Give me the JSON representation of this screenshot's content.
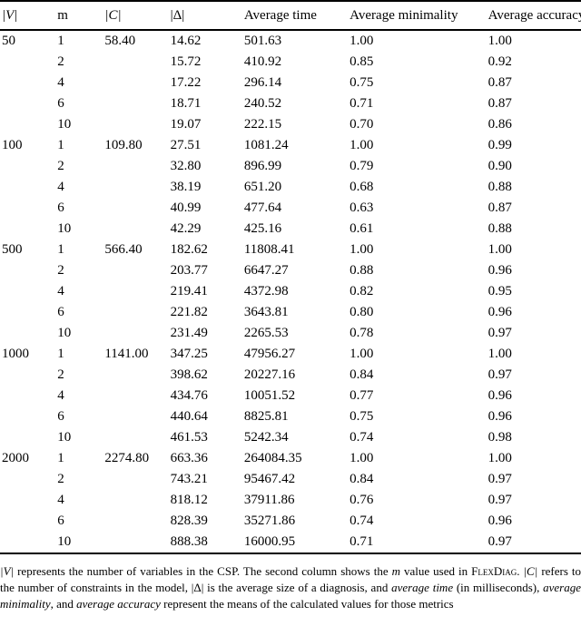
{
  "colors": {
    "text": "#000000",
    "background": "#ffffff",
    "rule": "#000000"
  },
  "table": {
    "headers": [
      {
        "label": "|V|",
        "style": "math-italic"
      },
      {
        "label": "m",
        "style": "roman"
      },
      {
        "label": "|C|",
        "style": "math-italic"
      },
      {
        "label": "|Δ|",
        "style": "roman"
      },
      {
        "label": "Average time",
        "style": "roman"
      },
      {
        "label": "Average minimality",
        "style": "roman"
      },
      {
        "label": "Average accuracy",
        "style": "roman"
      }
    ],
    "column_keys": [
      "v",
      "m",
      "c",
      "delta",
      "avg_time",
      "avg_minimality",
      "avg_accuracy"
    ],
    "rows": [
      {
        "v": "50",
        "m": "1",
        "c": "58.40",
        "delta": "14.62",
        "avg_time": "501.63",
        "avg_minimality": "1.00",
        "avg_accuracy": "1.00"
      },
      {
        "v": "",
        "m": "2",
        "c": "",
        "delta": "15.72",
        "avg_time": "410.92",
        "avg_minimality": "0.85",
        "avg_accuracy": "0.92"
      },
      {
        "v": "",
        "m": "4",
        "c": "",
        "delta": "17.22",
        "avg_time": "296.14",
        "avg_minimality": "0.75",
        "avg_accuracy": "0.87"
      },
      {
        "v": "",
        "m": "6",
        "c": "",
        "delta": "18.71",
        "avg_time": "240.52",
        "avg_minimality": "0.71",
        "avg_accuracy": "0.87"
      },
      {
        "v": "",
        "m": "10",
        "c": "",
        "delta": "19.07",
        "avg_time": "222.15",
        "avg_minimality": "0.70",
        "avg_accuracy": "0.86"
      },
      {
        "v": "100",
        "m": "1",
        "c": "109.80",
        "delta": "27.51",
        "avg_time": "1081.24",
        "avg_minimality": "1.00",
        "avg_accuracy": "0.99"
      },
      {
        "v": "",
        "m": "2",
        "c": "",
        "delta": "32.80",
        "avg_time": "896.99",
        "avg_minimality": "0.79",
        "avg_accuracy": "0.90"
      },
      {
        "v": "",
        "m": "4",
        "c": "",
        "delta": "38.19",
        "avg_time": "651.20",
        "avg_minimality": "0.68",
        "avg_accuracy": "0.88"
      },
      {
        "v": "",
        "m": "6",
        "c": "",
        "delta": "40.99",
        "avg_time": "477.64",
        "avg_minimality": "0.63",
        "avg_accuracy": "0.87"
      },
      {
        "v": "",
        "m": "10",
        "c": "",
        "delta": "42.29",
        "avg_time": "425.16",
        "avg_minimality": "0.61",
        "avg_accuracy": "0.88"
      },
      {
        "v": "500",
        "m": "1",
        "c": "566.40",
        "delta": "182.62",
        "avg_time": "11808.41",
        "avg_minimality": "1.00",
        "avg_accuracy": "1.00"
      },
      {
        "v": "",
        "m": "2",
        "c": "",
        "delta": "203.77",
        "avg_time": "6647.27",
        "avg_minimality": "0.88",
        "avg_accuracy": "0.96"
      },
      {
        "v": "",
        "m": "4",
        "c": "",
        "delta": "219.41",
        "avg_time": "4372.98",
        "avg_minimality": "0.82",
        "avg_accuracy": "0.95"
      },
      {
        "v": "",
        "m": "6",
        "c": "",
        "delta": "221.82",
        "avg_time": "3643.81",
        "avg_minimality": "0.80",
        "avg_accuracy": "0.96"
      },
      {
        "v": "",
        "m": "10",
        "c": "",
        "delta": "231.49",
        "avg_time": "2265.53",
        "avg_minimality": "0.78",
        "avg_accuracy": "0.97"
      },
      {
        "v": "1000",
        "m": "1",
        "c": "1141.00",
        "delta": "347.25",
        "avg_time": "47956.27",
        "avg_minimality": "1.00",
        "avg_accuracy": "1.00"
      },
      {
        "v": "",
        "m": "2",
        "c": "",
        "delta": "398.62",
        "avg_time": "20227.16",
        "avg_minimality": "0.84",
        "avg_accuracy": "0.97"
      },
      {
        "v": "",
        "m": "4",
        "c": "",
        "delta": "434.76",
        "avg_time": "10051.52",
        "avg_minimality": "0.77",
        "avg_accuracy": "0.96"
      },
      {
        "v": "",
        "m": "6",
        "c": "",
        "delta": "440.64",
        "avg_time": "8825.81",
        "avg_minimality": "0.75",
        "avg_accuracy": "0.96"
      },
      {
        "v": "",
        "m": "10",
        "c": "",
        "delta": "461.53",
        "avg_time": "5242.34",
        "avg_minimality": "0.74",
        "avg_accuracy": "0.98"
      },
      {
        "v": "2000",
        "m": "1",
        "c": "2274.80",
        "delta": "663.36",
        "avg_time": "264084.35",
        "avg_minimality": "1.00",
        "avg_accuracy": "1.00"
      },
      {
        "v": "",
        "m": "2",
        "c": "",
        "delta": "743.21",
        "avg_time": "95467.42",
        "avg_minimality": "0.84",
        "avg_accuracy": "0.97"
      },
      {
        "v": "",
        "m": "4",
        "c": "",
        "delta": "818.12",
        "avg_time": "37911.86",
        "avg_minimality": "0.76",
        "avg_accuracy": "0.97"
      },
      {
        "v": "",
        "m": "6",
        "c": "",
        "delta": "828.39",
        "avg_time": "35271.86",
        "avg_minimality": "0.74",
        "avg_accuracy": "0.96"
      },
      {
        "v": "",
        "m": "10",
        "c": "",
        "delta": "888.38",
        "avg_time": "16000.95",
        "avg_minimality": "0.71",
        "avg_accuracy": "0.97"
      }
    ]
  },
  "footnote": {
    "segments": [
      {
        "text": "|V|",
        "style": "math-italic"
      },
      {
        "text": " represents the number of variables in the CSP. The second column shows the ",
        "style": "roman"
      },
      {
        "text": "m",
        "style": "italic"
      },
      {
        "text": " value used in ",
        "style": "roman"
      },
      {
        "text": "FlexDiag",
        "style": "smallcaps"
      },
      {
        "text": ". ",
        "style": "roman"
      },
      {
        "text": "|C|",
        "style": "math-italic"
      },
      {
        "text": " refers to the number of constraints in the model, |Δ| is the average size of a diagnosis, and ",
        "style": "roman"
      },
      {
        "text": "average time",
        "style": "italic"
      },
      {
        "text": " (in milliseconds), ",
        "style": "roman"
      },
      {
        "text": "average minimality",
        "style": "italic"
      },
      {
        "text": ", and ",
        "style": "roman"
      },
      {
        "text": "average accuracy",
        "style": "italic"
      },
      {
        "text": " represent the means of the calculated values for those metrics",
        "style": "roman"
      }
    ]
  }
}
